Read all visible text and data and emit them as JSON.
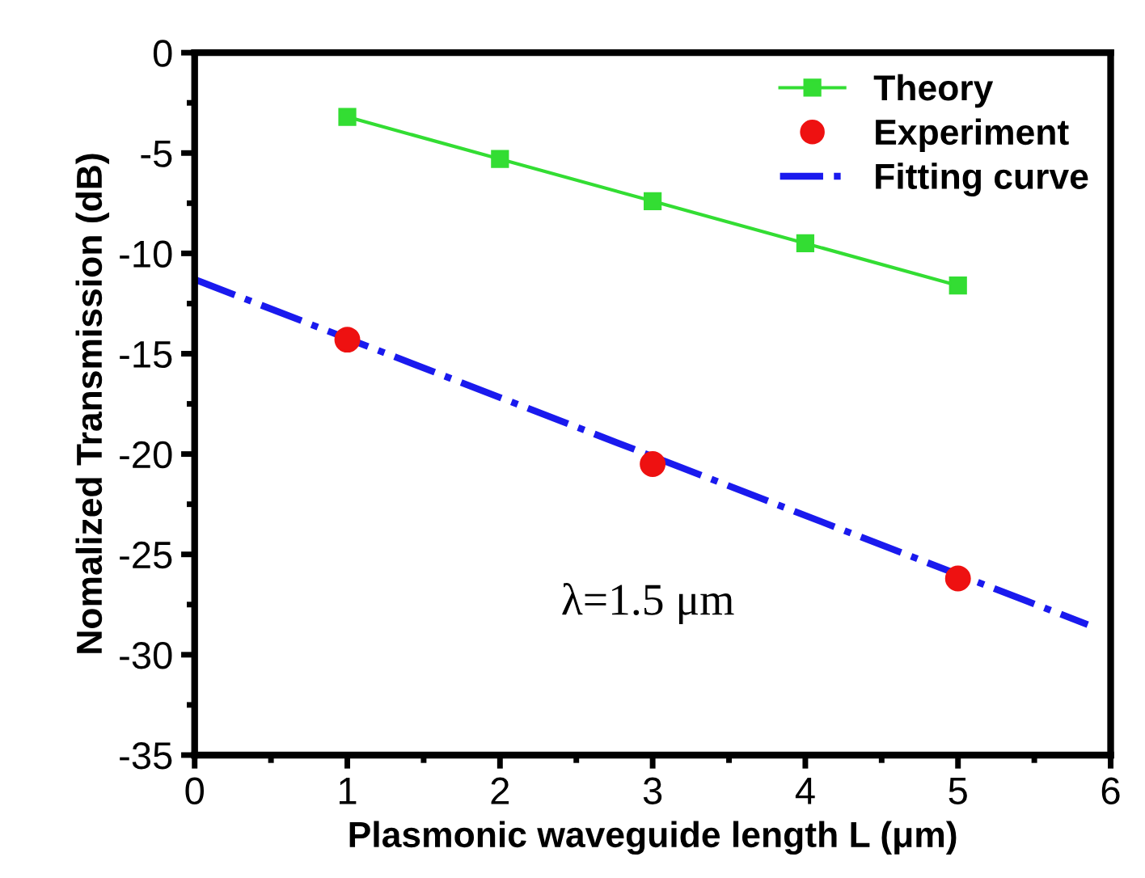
{
  "chart_data": {
    "type": "line",
    "xlabel": "Plasmonic waveguide length L (μm)",
    "ylabel": "Nomalized Transmission (dB)",
    "xlim": [
      0,
      6
    ],
    "ylim": [
      -35,
      0
    ],
    "xticks": [
      0,
      1,
      2,
      3,
      4,
      5,
      6
    ],
    "yticks": [
      -35,
      -30,
      -25,
      -20,
      -15,
      -10,
      -5,
      0
    ],
    "legend": "top right",
    "grid": false,
    "series": [
      {
        "name": "Theory",
        "color": "#33dd33",
        "marker": "square",
        "line_style": "solid",
        "x": [
          1,
          2,
          3,
          4,
          5
        ],
        "values": [
          -3.2,
          -5.3,
          -7.4,
          -9.5,
          -11.6
        ]
      },
      {
        "name": "Experiment",
        "type": "scatter",
        "color": "#ee1111",
        "marker": "circle",
        "x": [
          1,
          3,
          5
        ],
        "values": [
          -14.3,
          -20.5,
          -26.2
        ]
      },
      {
        "name": "Fitting curve",
        "color": "#1a1aee",
        "marker": "none",
        "line_style": "dashdot",
        "x": [
          0,
          5.85
        ],
        "values": [
          -11.3,
          -28.5
        ]
      }
    ],
    "annotations": [
      "λ=1.5 μm"
    ]
  }
}
